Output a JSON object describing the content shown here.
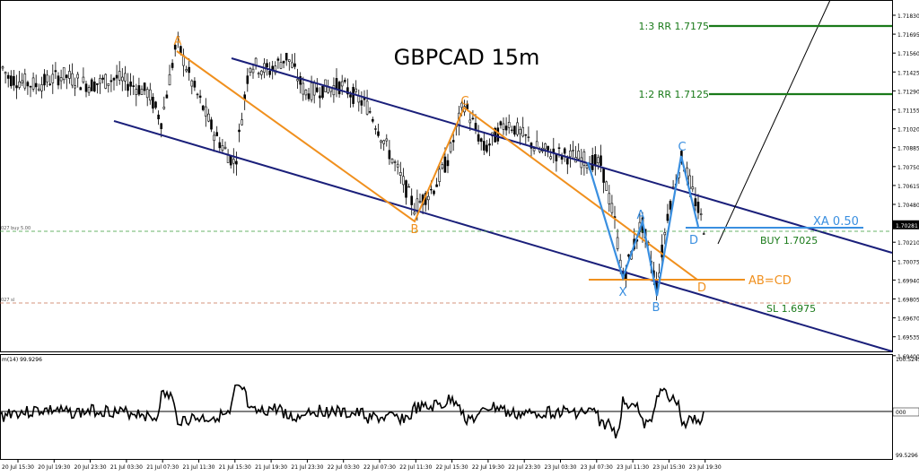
{
  "chart_data": {
    "type": "candlestick",
    "title": "GBPCAD 15m",
    "symbol": "GBPCAD",
    "timeframe": "15m",
    "price_axis": {
      "min": 1.694,
      "max": 1.7183,
      "ticks": [
        "1.71830",
        "1.71695",
        "1.71560",
        "1.71425",
        "1.71290",
        "1.71155",
        "1.71020",
        "1.70885",
        "1.70750",
        "1.70615",
        "1.70480",
        "1.70345",
        "1.70210",
        "1.70075",
        "1.69940",
        "1.69805",
        "1.69670",
        "1.69535",
        "1.69400"
      ],
      "current_price_label": "1.70281"
    },
    "time_axis": {
      "labels": [
        "20 Jul 15:30",
        "20 Jul 19:30",
        "20 Jul 23:30",
        "21 Jul 03:30",
        "21 Jul 07:30",
        "21 Jul 11:30",
        "21 Jul 15:30",
        "21 Jul 19:30",
        "21 Jul 23:30",
        "22 Jul 03:30",
        "22 Jul 07:30",
        "22 Jul 11:30",
        "22 Jul 15:30",
        "22 Jul 19:30",
        "22 Jul 23:30",
        "23 Jul 03:30",
        "23 Jul 07:30",
        "23 Jul 11:30",
        "23 Jul 15:30",
        "23 Jul 19:30"
      ]
    },
    "orange_pattern": {
      "points": [
        {
          "label": "A",
          "price": 1.7156
        },
        {
          "label": "B",
          "price": 1.7038
        },
        {
          "label": "C",
          "price": 1.7113
        },
        {
          "label": "D",
          "price": 1.6995
        }
      ],
      "target_label": "AB=CD"
    },
    "blue_pattern": {
      "points": [
        {
          "label": "X",
          "price": 1.6985
        },
        {
          "label": "A",
          "price": 1.7035
        },
        {
          "label": "B",
          "price": 1.6982
        },
        {
          "label": "C",
          "price": 1.7078
        },
        {
          "label": "D",
          "price": 1.7027
        }
      ],
      "retrace_label": "XA 0.50"
    },
    "levels": [
      {
        "label": "1:3 RR 1.7175",
        "price": 1.7175,
        "color": "#1a7a1a"
      },
      {
        "label": "1:2 RR 1.7125",
        "price": 1.7125,
        "color": "#1a7a1a"
      },
      {
        "label": "BUY 1.7025",
        "price": 1.7025,
        "color": "#1a7a1a"
      },
      {
        "label": "SL 1.6975",
        "price": 1.6975,
        "color": "#1a7a1a"
      }
    ],
    "channel_color": "#1a1f7a",
    "orange_color": "#f0901e",
    "blue_color": "#3a8fe0",
    "dashed_lines": [
      {
        "label": "027 buy 5.00",
        "price": 1.7025,
        "color": "#3a9a3a"
      },
      {
        "label": "027 sl",
        "price": 1.6975,
        "color": "#c87050"
      }
    ],
    "oscillator": {
      "label": "m(14) 99.9296",
      "top_label": "100.5245",
      "zero_label": "000",
      "bottom_label": "99.5296"
    }
  }
}
